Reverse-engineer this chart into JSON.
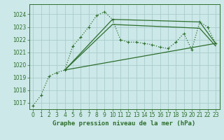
{
  "title": "Graphe pression niveau de la mer (hPa)",
  "bg_color": "#cce8e8",
  "grid_color": "#aacccc",
  "line_color": "#2d6e2d",
  "xlim": [
    -0.5,
    23.5
  ],
  "ylim": [
    1016.5,
    1024.8
  ],
  "yticks": [
    1017,
    1018,
    1019,
    1020,
    1021,
    1022,
    1023,
    1024
  ],
  "xticks": [
    0,
    1,
    2,
    3,
    4,
    5,
    6,
    7,
    8,
    9,
    10,
    11,
    12,
    13,
    14,
    15,
    16,
    17,
    18,
    19,
    20,
    21,
    22,
    23
  ],
  "main_x": [
    0,
    1,
    2,
    3,
    4,
    5,
    6,
    7,
    8,
    9,
    10,
    11,
    12,
    13,
    14,
    15,
    16,
    17,
    18,
    19,
    20,
    21,
    22,
    23
  ],
  "main_y": [
    1016.8,
    1017.6,
    1019.1,
    1019.4,
    1019.6,
    1021.5,
    1022.2,
    1023.0,
    1023.9,
    1024.2,
    1023.6,
    1022.0,
    1021.8,
    1021.8,
    1021.7,
    1021.6,
    1021.4,
    1021.3,
    1021.8,
    1022.5,
    1021.2,
    1023.4,
    1023.0,
    1021.7
  ],
  "trend1_x": [
    4,
    10,
    21,
    23
  ],
  "trend1_y": [
    1019.6,
    1023.6,
    1023.4,
    1021.7
  ],
  "trend2_x": [
    4,
    10,
    21,
    23
  ],
  "trend2_y": [
    1019.6,
    1023.2,
    1022.9,
    1021.5
  ],
  "trend3_x": [
    4,
    23
  ],
  "trend3_y": [
    1019.6,
    1021.7
  ],
  "title_fontsize": 6.5,
  "tick_fontsize": 5.5
}
